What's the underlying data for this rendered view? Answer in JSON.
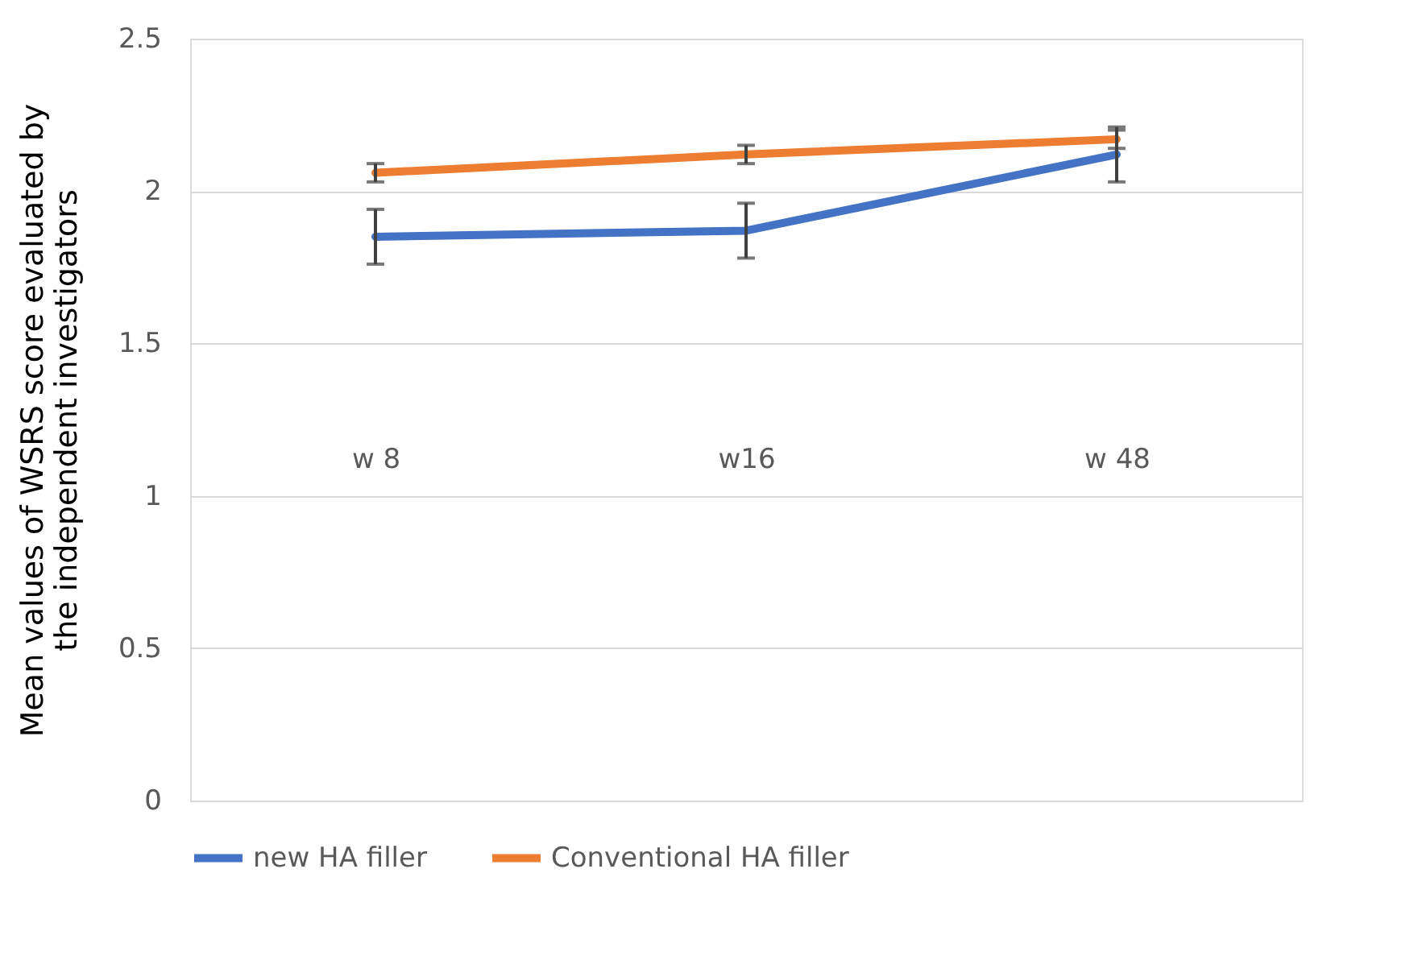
{
  "chart_data": {
    "type": "line",
    "ylabel": "Mean values of WSRS score evaluated by\nthe independent investigators",
    "categories": [
      "w 8",
      "w16",
      "w 48"
    ],
    "series": [
      {
        "name": "new HA filler",
        "color": "#4472c4",
        "values": [
          1.85,
          1.87,
          2.12
        ],
        "errors": [
          0.09,
          0.09,
          0.09
        ]
      },
      {
        "name": "Conventional HA filler",
        "color": "#ed7d31",
        "values": [
          2.06,
          2.12,
          2.17
        ],
        "errors": [
          0.03,
          0.03,
          0.03
        ]
      }
    ],
    "ylim": [
      0,
      2.5
    ],
    "yticks": [
      0,
      0.5,
      1,
      1.5,
      2,
      2.5
    ],
    "grid": "y",
    "legend": "bottom",
    "marker": "none",
    "line_style": "solid"
  }
}
